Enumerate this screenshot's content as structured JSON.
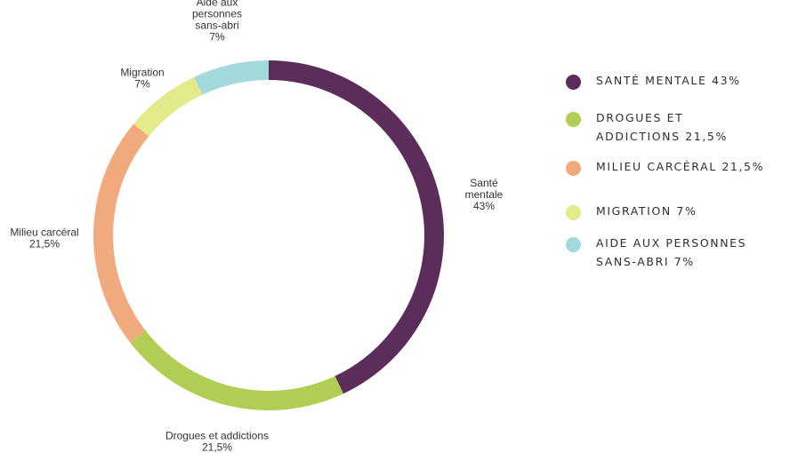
{
  "chart_data": {
    "type": "pie",
    "title": "",
    "slices": [
      {
        "label": "Santé mentale",
        "value": 43,
        "value_label": "43%",
        "color": "#5c2d5a",
        "legend": "SANTÉ MENTALE 43%"
      },
      {
        "label": "Drogues et addictions",
        "value": 21.5,
        "value_label": "21,5%",
        "color": "#b0ce53",
        "legend": "DROGUES ET\nADDICTIONS 21,5%"
      },
      {
        "label": "Milieu carcéral",
        "value": 21.5,
        "value_label": "21,5%",
        "color": "#f0aa7d",
        "legend": "MILIEU CARCÉRAL 21,5%"
      },
      {
        "label": "Migration",
        "value": 7,
        "value_label": "7%",
        "color": "#e3ea8a",
        "legend": "MIGRATION 7%"
      },
      {
        "label": "Aide aux personnes sans-abri",
        "value": 7,
        "value_label": "7%",
        "color": "#a3d9dc",
        "legend": "AIDE AUX PERSONNES\nSANS-ABRI 7%"
      }
    ],
    "legend_position": "right",
    "style": "donut"
  }
}
